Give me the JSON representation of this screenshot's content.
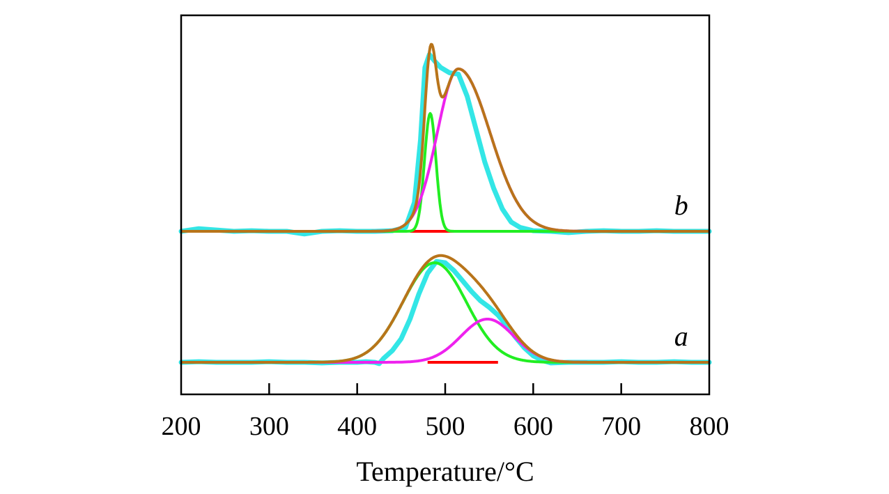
{
  "chart_data": {
    "type": "line",
    "title": "",
    "xlabel": "Temperature/°C",
    "ylabel": "",
    "xlim": [
      200,
      800
    ],
    "x_ticks": [
      200,
      300,
      400,
      500,
      600,
      700,
      800
    ],
    "tick_labels": [
      "200",
      "300",
      "400",
      "500",
      "600",
      "700",
      "800"
    ],
    "y_ticks_shown": false,
    "grid": false,
    "legend": "none",
    "colors": {
      "measured": "#33e6e6",
      "fit": "#b8741a",
      "peak_low": "#22ee22",
      "peak_high": "#ee22ee",
      "baseline": "#ff0000"
    },
    "curves": [
      {
        "label": "b",
        "label_x": 765,
        "offset": 1.0,
        "baseline": [
          460,
          510
        ],
        "peaks": [
          {
            "role": "peak_low",
            "center": 483,
            "height": 0.9,
            "sigma": 6.5
          },
          {
            "role": "peak_high",
            "center": 515,
            "height": 1.24,
            "sigma_left": 24,
            "sigma_right": 36
          }
        ],
        "measured": [
          [
            200,
            0.0
          ],
          [
            220,
            0.02
          ],
          [
            240,
            0.01
          ],
          [
            260,
            0.0
          ],
          [
            280,
            0.005
          ],
          [
            300,
            0.0
          ],
          [
            320,
            0.0
          ],
          [
            340,
            -0.02
          ],
          [
            360,
            0.0
          ],
          [
            380,
            0.005
          ],
          [
            400,
            0.0
          ],
          [
            420,
            0.0
          ],
          [
            440,
            0.005
          ],
          [
            455,
            0.03
          ],
          [
            465,
            0.22
          ],
          [
            472,
            0.7
          ],
          [
            477,
            1.25
          ],
          [
            482,
            1.35
          ],
          [
            488,
            1.3
          ],
          [
            495,
            1.25
          ],
          [
            505,
            1.21
          ],
          [
            515,
            1.2
          ],
          [
            525,
            1.03
          ],
          [
            535,
            0.78
          ],
          [
            545,
            0.53
          ],
          [
            555,
            0.33
          ],
          [
            565,
            0.17
          ],
          [
            575,
            0.07
          ],
          [
            585,
            0.03
          ],
          [
            600,
            0.005
          ],
          [
            620,
            0.0
          ],
          [
            640,
            -0.01
          ],
          [
            660,
            0.0
          ],
          [
            680,
            0.005
          ],
          [
            700,
            0.0
          ],
          [
            720,
            0.0
          ],
          [
            740,
            0.005
          ],
          [
            760,
            0.0
          ],
          [
            780,
            0.0
          ],
          [
            800,
            0.0
          ]
        ]
      },
      {
        "label": "a",
        "label_x": 765,
        "offset": 0.0,
        "baseline": [
          480,
          560
        ],
        "peaks": [
          {
            "role": "peak_low",
            "center": 488,
            "height": 0.76,
            "sigma": 36
          },
          {
            "role": "peak_high",
            "center": 548,
            "height": 0.33,
            "sigma": 30
          }
        ],
        "measured": [
          [
            200,
            0.0
          ],
          [
            220,
            0.005
          ],
          [
            240,
            0.0
          ],
          [
            260,
            0.0
          ],
          [
            280,
            0.0
          ],
          [
            300,
            0.005
          ],
          [
            320,
            0.0
          ],
          [
            340,
            0.0
          ],
          [
            360,
            -0.005
          ],
          [
            380,
            0.0
          ],
          [
            400,
            0.0
          ],
          [
            410,
            0.005
          ],
          [
            420,
            0.0
          ],
          [
            425,
            -0.01
          ],
          [
            430,
            0.03
          ],
          [
            440,
            0.09
          ],
          [
            450,
            0.18
          ],
          [
            460,
            0.33
          ],
          [
            470,
            0.52
          ],
          [
            480,
            0.68
          ],
          [
            490,
            0.77
          ],
          [
            500,
            0.76
          ],
          [
            510,
            0.7
          ],
          [
            520,
            0.62
          ],
          [
            530,
            0.54
          ],
          [
            540,
            0.47
          ],
          [
            550,
            0.42
          ],
          [
            560,
            0.36
          ],
          [
            570,
            0.28
          ],
          [
            580,
            0.19
          ],
          [
            590,
            0.11
          ],
          [
            600,
            0.05
          ],
          [
            610,
            0.015
          ],
          [
            620,
            -0.005
          ],
          [
            640,
            0.0
          ],
          [
            660,
            0.0
          ],
          [
            680,
            0.0
          ],
          [
            700,
            0.005
          ],
          [
            720,
            0.0
          ],
          [
            740,
            0.0
          ],
          [
            760,
            0.005
          ],
          [
            780,
            0.0
          ],
          [
            800,
            0.0
          ]
        ]
      }
    ]
  }
}
